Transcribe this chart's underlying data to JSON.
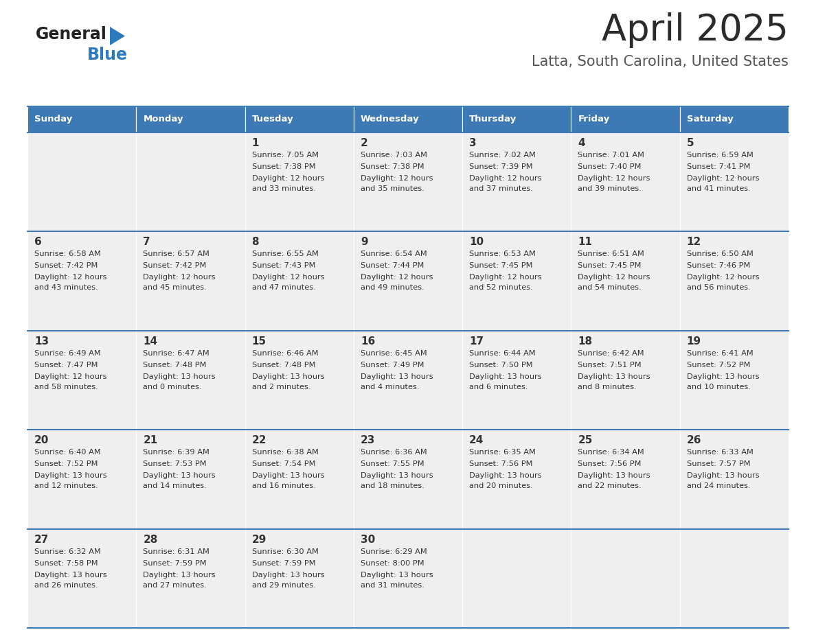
{
  "title": "April 2025",
  "subtitle": "Latta, South Carolina, United States",
  "header_color": "#3d7ab5",
  "header_text_color": "#ffffff",
  "cell_bg_color": "#efefef",
  "border_color": "#3d7ab5",
  "text_color": "#333333",
  "days_of_week": [
    "Sunday",
    "Monday",
    "Tuesday",
    "Wednesday",
    "Thursday",
    "Friday",
    "Saturday"
  ],
  "weeks": [
    [
      {
        "day": "",
        "sunrise": "",
        "sunset": "",
        "daylight": ""
      },
      {
        "day": "",
        "sunrise": "",
        "sunset": "",
        "daylight": ""
      },
      {
        "day": "1",
        "sunrise": "Sunrise: 7:05 AM",
        "sunset": "Sunset: 7:38 PM",
        "daylight": "Daylight: 12 hours\nand 33 minutes."
      },
      {
        "day": "2",
        "sunrise": "Sunrise: 7:03 AM",
        "sunset": "Sunset: 7:38 PM",
        "daylight": "Daylight: 12 hours\nand 35 minutes."
      },
      {
        "day": "3",
        "sunrise": "Sunrise: 7:02 AM",
        "sunset": "Sunset: 7:39 PM",
        "daylight": "Daylight: 12 hours\nand 37 minutes."
      },
      {
        "day": "4",
        "sunrise": "Sunrise: 7:01 AM",
        "sunset": "Sunset: 7:40 PM",
        "daylight": "Daylight: 12 hours\nand 39 minutes."
      },
      {
        "day": "5",
        "sunrise": "Sunrise: 6:59 AM",
        "sunset": "Sunset: 7:41 PM",
        "daylight": "Daylight: 12 hours\nand 41 minutes."
      }
    ],
    [
      {
        "day": "6",
        "sunrise": "Sunrise: 6:58 AM",
        "sunset": "Sunset: 7:42 PM",
        "daylight": "Daylight: 12 hours\nand 43 minutes."
      },
      {
        "day": "7",
        "sunrise": "Sunrise: 6:57 AM",
        "sunset": "Sunset: 7:42 PM",
        "daylight": "Daylight: 12 hours\nand 45 minutes."
      },
      {
        "day": "8",
        "sunrise": "Sunrise: 6:55 AM",
        "sunset": "Sunset: 7:43 PM",
        "daylight": "Daylight: 12 hours\nand 47 minutes."
      },
      {
        "day": "9",
        "sunrise": "Sunrise: 6:54 AM",
        "sunset": "Sunset: 7:44 PM",
        "daylight": "Daylight: 12 hours\nand 49 minutes."
      },
      {
        "day": "10",
        "sunrise": "Sunrise: 6:53 AM",
        "sunset": "Sunset: 7:45 PM",
        "daylight": "Daylight: 12 hours\nand 52 minutes."
      },
      {
        "day": "11",
        "sunrise": "Sunrise: 6:51 AM",
        "sunset": "Sunset: 7:45 PM",
        "daylight": "Daylight: 12 hours\nand 54 minutes."
      },
      {
        "day": "12",
        "sunrise": "Sunrise: 6:50 AM",
        "sunset": "Sunset: 7:46 PM",
        "daylight": "Daylight: 12 hours\nand 56 minutes."
      }
    ],
    [
      {
        "day": "13",
        "sunrise": "Sunrise: 6:49 AM",
        "sunset": "Sunset: 7:47 PM",
        "daylight": "Daylight: 12 hours\nand 58 minutes."
      },
      {
        "day": "14",
        "sunrise": "Sunrise: 6:47 AM",
        "sunset": "Sunset: 7:48 PM",
        "daylight": "Daylight: 13 hours\nand 0 minutes."
      },
      {
        "day": "15",
        "sunrise": "Sunrise: 6:46 AM",
        "sunset": "Sunset: 7:48 PM",
        "daylight": "Daylight: 13 hours\nand 2 minutes."
      },
      {
        "day": "16",
        "sunrise": "Sunrise: 6:45 AM",
        "sunset": "Sunset: 7:49 PM",
        "daylight": "Daylight: 13 hours\nand 4 minutes."
      },
      {
        "day": "17",
        "sunrise": "Sunrise: 6:44 AM",
        "sunset": "Sunset: 7:50 PM",
        "daylight": "Daylight: 13 hours\nand 6 minutes."
      },
      {
        "day": "18",
        "sunrise": "Sunrise: 6:42 AM",
        "sunset": "Sunset: 7:51 PM",
        "daylight": "Daylight: 13 hours\nand 8 minutes."
      },
      {
        "day": "19",
        "sunrise": "Sunrise: 6:41 AM",
        "sunset": "Sunset: 7:52 PM",
        "daylight": "Daylight: 13 hours\nand 10 minutes."
      }
    ],
    [
      {
        "day": "20",
        "sunrise": "Sunrise: 6:40 AM",
        "sunset": "Sunset: 7:52 PM",
        "daylight": "Daylight: 13 hours\nand 12 minutes."
      },
      {
        "day": "21",
        "sunrise": "Sunrise: 6:39 AM",
        "sunset": "Sunset: 7:53 PM",
        "daylight": "Daylight: 13 hours\nand 14 minutes."
      },
      {
        "day": "22",
        "sunrise": "Sunrise: 6:38 AM",
        "sunset": "Sunset: 7:54 PM",
        "daylight": "Daylight: 13 hours\nand 16 minutes."
      },
      {
        "day": "23",
        "sunrise": "Sunrise: 6:36 AM",
        "sunset": "Sunset: 7:55 PM",
        "daylight": "Daylight: 13 hours\nand 18 minutes."
      },
      {
        "day": "24",
        "sunrise": "Sunrise: 6:35 AM",
        "sunset": "Sunset: 7:56 PM",
        "daylight": "Daylight: 13 hours\nand 20 minutes."
      },
      {
        "day": "25",
        "sunrise": "Sunrise: 6:34 AM",
        "sunset": "Sunset: 7:56 PM",
        "daylight": "Daylight: 13 hours\nand 22 minutes."
      },
      {
        "day": "26",
        "sunrise": "Sunrise: 6:33 AM",
        "sunset": "Sunset: 7:57 PM",
        "daylight": "Daylight: 13 hours\nand 24 minutes."
      }
    ],
    [
      {
        "day": "27",
        "sunrise": "Sunrise: 6:32 AM",
        "sunset": "Sunset: 7:58 PM",
        "daylight": "Daylight: 13 hours\nand 26 minutes."
      },
      {
        "day": "28",
        "sunrise": "Sunrise: 6:31 AM",
        "sunset": "Sunset: 7:59 PM",
        "daylight": "Daylight: 13 hours\nand 27 minutes."
      },
      {
        "day": "29",
        "sunrise": "Sunrise: 6:30 AM",
        "sunset": "Sunset: 7:59 PM",
        "daylight": "Daylight: 13 hours\nand 29 minutes."
      },
      {
        "day": "30",
        "sunrise": "Sunrise: 6:29 AM",
        "sunset": "Sunset: 8:00 PM",
        "daylight": "Daylight: 13 hours\nand 31 minutes."
      },
      {
        "day": "",
        "sunrise": "",
        "sunset": "",
        "daylight": ""
      },
      {
        "day": "",
        "sunrise": "",
        "sunset": "",
        "daylight": ""
      },
      {
        "day": "",
        "sunrise": "",
        "sunset": "",
        "daylight": ""
      }
    ]
  ],
  "logo_general_color": "#222222",
  "logo_blue_color": "#2e7abf",
  "logo_triangle_color": "#2e7abf"
}
